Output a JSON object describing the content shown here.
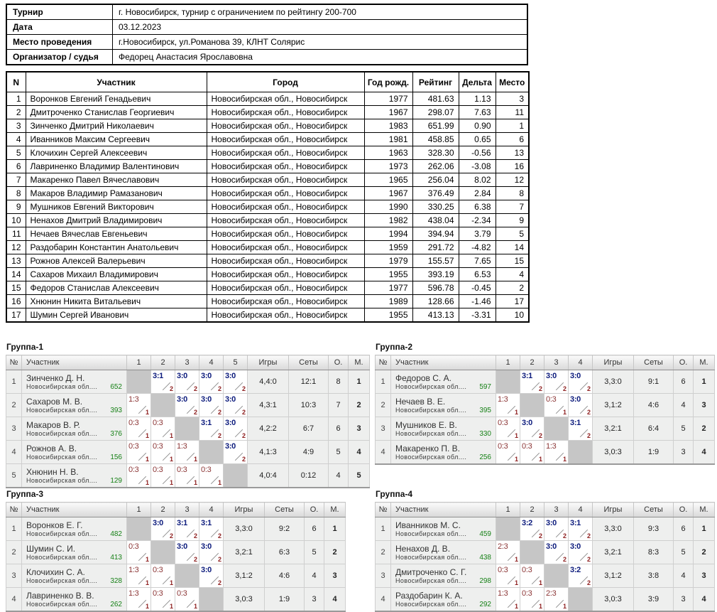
{
  "colors": {
    "win_score": "#0b1a7c",
    "loss_score": "#8b3434",
    "points_small": "#8e1f1f",
    "rating_green": "#178117",
    "place_navy": "#27308f",
    "self_cell": "#c6c6c6"
  },
  "info": {
    "rows": [
      {
        "label": "Турнир",
        "value": "г. Новосибирск, турнир с ограничением по рейтингу 200-700"
      },
      {
        "label": "Дата",
        "value": "03.12.2023"
      },
      {
        "label": "Место проведения",
        "value": "г.Новосибирск, ул.Романова 39, КЛНТ Солярис"
      },
      {
        "label": "Организатор / судья",
        "value": "Федорец Анастасия Ярославовна"
      }
    ]
  },
  "standings": {
    "headers": [
      "N",
      "Участник",
      "Город",
      "Год рожд.",
      "Рейтинг",
      "Дельта",
      "Место"
    ],
    "rows": [
      [
        "1",
        "Воронков Евгений Генадьевич",
        "Новосибирская обл., Новосибирск",
        "1977",
        "481.63",
        "1.13",
        "3"
      ],
      [
        "2",
        "Дмитроченко Станислав Георгиевич",
        "Новосибирская обл., Новосибирск",
        "1967",
        "298.07",
        "7.63",
        "11"
      ],
      [
        "3",
        "Зинченко Дмитрий Николаевич",
        "Новосибирская обл., Новосибирск",
        "1983",
        "651.99",
        "0.90",
        "1"
      ],
      [
        "4",
        "Иванников Максим Сергеевич",
        "Новосибирская обл., Новосибирск",
        "1981",
        "458.85",
        "0.65",
        "6"
      ],
      [
        "5",
        "Клочихин Сергей Алексеевич",
        "Новосибирская обл., Новосибирск",
        "1963",
        "328.30",
        "-0.56",
        "13"
      ],
      [
        "6",
        "Лавриненко Владимир Валентинович",
        "Новосибирская обл., Новосибирск",
        "1973",
        "262.06",
        "-3.08",
        "16"
      ],
      [
        "7",
        "Макаренко Павел Вячеславович",
        "Новосибирская обл., Новосибирск",
        "1965",
        "256.04",
        "8.02",
        "12"
      ],
      [
        "8",
        "Макаров Владимир Рамазанович",
        "Новосибирская обл., Новосибирск",
        "1967",
        "376.49",
        "2.84",
        "8"
      ],
      [
        "9",
        "Мушников Евгений Викторович",
        "Новосибирская обл., Новосибирск",
        "1990",
        "330.25",
        "6.38",
        "7"
      ],
      [
        "10",
        "Ненахов Дмитрий Владимирович",
        "Новосибирская обл., Новосибирск",
        "1982",
        "438.04",
        "-2.34",
        "9"
      ],
      [
        "11",
        "Нечаев Вячеслав Евгеньевич",
        "Новосибирская обл., Новосибирск",
        "1994",
        "394.94",
        "3.79",
        "5"
      ],
      [
        "12",
        "Раздобарин Константин Анатольевич",
        "Новосибирская обл., Новосибирск",
        "1959",
        "291.72",
        "-4.82",
        "14"
      ],
      [
        "13",
        "Рожнов Алексей Валерьевич",
        "Новосибирская обл., Новосибирск",
        "1979",
        "155.57",
        "7.65",
        "15"
      ],
      [
        "14",
        "Сахаров Михаил Владимирович",
        "Новосибирская обл., Новосибирск",
        "1955",
        "393.19",
        "6.53",
        "4"
      ],
      [
        "15",
        "Федоров Станислав Алексеевич",
        "Новосибирская обл., Новосибирск",
        "1977",
        "596.78",
        "-0.45",
        "2"
      ],
      [
        "16",
        "Хнюнин Никита Витальевич",
        "Новосибирская обл., Новосибирск",
        "1989",
        "128.66",
        "-1.46",
        "17"
      ],
      [
        "17",
        "Шумин Сергей Иванович",
        "Новосибирская обл., Новосибирск",
        "1955",
        "413.13",
        "-3.31",
        "10"
      ]
    ]
  },
  "group_headers": {
    "num": "№",
    "player": "Участник",
    "games": "Игры",
    "sets": "Сеты",
    "points": "О.",
    "place": "М."
  },
  "groups": [
    {
      "title": "Группа-1",
      "match_cols": [
        "1",
        "2",
        "3",
        "4",
        "5"
      ],
      "players": [
        {
          "num": "1",
          "name": "Зинченко Д. Н.",
          "region": "Новосибирская обл....",
          "rating": "652",
          "results": [
            null,
            {
              "s": "3:1",
              "p": "2",
              "w": 1
            },
            {
              "s": "3:0",
              "p": "2",
              "w": 1
            },
            {
              "s": "3:0",
              "p": "2",
              "w": 1
            },
            {
              "s": "3:0",
              "p": "2",
              "w": 1
            }
          ],
          "games": "4,4:0",
          "sets": "12:1",
          "points": "8",
          "place": "1"
        },
        {
          "num": "2",
          "name": "Сахаров М. В.",
          "region": "Новосибирская обл....",
          "rating": "393",
          "results": [
            {
              "s": "1:3",
              "p": "1",
              "w": 0
            },
            null,
            {
              "s": "3:0",
              "p": "2",
              "w": 1
            },
            {
              "s": "3:0",
              "p": "2",
              "w": 1
            },
            {
              "s": "3:0",
              "p": "2",
              "w": 1
            }
          ],
          "games": "4,3:1",
          "sets": "10:3",
          "points": "7",
          "place": "2"
        },
        {
          "num": "3",
          "name": "Макаров В. Р.",
          "region": "Новосибирская обл....",
          "rating": "376",
          "results": [
            {
              "s": "0:3",
              "p": "1",
              "w": 0
            },
            {
              "s": "0:3",
              "p": "1",
              "w": 0
            },
            null,
            {
              "s": "3:1",
              "p": "2",
              "w": 1
            },
            {
              "s": "3:0",
              "p": "2",
              "w": 1
            }
          ],
          "games": "4,2:2",
          "sets": "6:7",
          "points": "6",
          "place": "3"
        },
        {
          "num": "4",
          "name": "Рожнов А. В.",
          "region": "Новосибирская обл....",
          "rating": "156",
          "results": [
            {
              "s": "0:3",
              "p": "1",
              "w": 0
            },
            {
              "s": "0:3",
              "p": "1",
              "w": 0
            },
            {
              "s": "1:3",
              "p": "1",
              "w": 0
            },
            null,
            {
              "s": "3:0",
              "p": "2",
              "w": 1
            }
          ],
          "games": "4,1:3",
          "sets": "4:9",
          "points": "5",
          "place": "4"
        },
        {
          "num": "5",
          "name": "Хнюнин Н. В.",
          "region": "Новосибирская обл....",
          "rating": "129",
          "results": [
            {
              "s": "0:3",
              "p": "1",
              "w": 0
            },
            {
              "s": "0:3",
              "p": "1",
              "w": 0
            },
            {
              "s": "0:3",
              "p": "1",
              "w": 0
            },
            {
              "s": "0:3",
              "p": "1",
              "w": 0
            },
            null
          ],
          "games": "4,0:4",
          "sets": "0:12",
          "points": "4",
          "place": "5"
        }
      ]
    },
    {
      "title": "Группа-2",
      "match_cols": [
        "1",
        "2",
        "3",
        "4"
      ],
      "players": [
        {
          "num": "1",
          "name": "Федоров С. А.",
          "region": "Новосибирская обл....",
          "rating": "597",
          "results": [
            null,
            {
              "s": "3:1",
              "p": "2",
              "w": 1
            },
            {
              "s": "3:0",
              "p": "2",
              "w": 1
            },
            {
              "s": "3:0",
              "p": "2",
              "w": 1
            }
          ],
          "games": "3,3:0",
          "sets": "9:1",
          "points": "6",
          "place": "1"
        },
        {
          "num": "2",
          "name": "Нечаев В. Е.",
          "region": "Новосибирская обл....",
          "rating": "395",
          "results": [
            {
              "s": "1:3",
              "p": "1",
              "w": 0
            },
            null,
            {
              "s": "0:3",
              "p": "1",
              "w": 0
            },
            {
              "s": "3:0",
              "p": "2",
              "w": 1
            }
          ],
          "games": "3,1:2",
          "sets": "4:6",
          "points": "4",
          "place": "3"
        },
        {
          "num": "3",
          "name": "Мушников Е. В.",
          "region": "Новосибирская обл....",
          "rating": "330",
          "results": [
            {
              "s": "0:3",
              "p": "1",
              "w": 0
            },
            {
              "s": "3:0",
              "p": "2",
              "w": 1
            },
            null,
            {
              "s": "3:1",
              "p": "2",
              "w": 1
            }
          ],
          "games": "3,2:1",
          "sets": "6:4",
          "points": "5",
          "place": "2"
        },
        {
          "num": "4",
          "name": "Макаренко П. В.",
          "region": "Новосибирская обл....",
          "rating": "256",
          "results": [
            {
              "s": "0:3",
              "p": "1",
              "w": 0
            },
            {
              "s": "0:3",
              "p": "1",
              "w": 0
            },
            {
              "s": "1:3",
              "p": "1",
              "w": 0
            },
            null
          ],
          "games": "3,0:3",
          "sets": "1:9",
          "points": "3",
          "place": "4"
        }
      ]
    },
    {
      "title": "Группа-3",
      "match_cols": [
        "1",
        "2",
        "3",
        "4"
      ],
      "players": [
        {
          "num": "1",
          "name": "Воронков Е. Г.",
          "region": "Новосибирская обл....",
          "rating": "482",
          "results": [
            null,
            {
              "s": "3:0",
              "p": "2",
              "w": 1
            },
            {
              "s": "3:1",
              "p": "2",
              "w": 1
            },
            {
              "s": "3:1",
              "p": "2",
              "w": 1
            }
          ],
          "games": "3,3:0",
          "sets": "9:2",
          "points": "6",
          "place": "1"
        },
        {
          "num": "2",
          "name": "Шумин С. И.",
          "region": "Новосибирская обл....",
          "rating": "413",
          "results": [
            {
              "s": "0:3",
              "p": "1",
              "w": 0
            },
            null,
            {
              "s": "3:0",
              "p": "2",
              "w": 1
            },
            {
              "s": "3:0",
              "p": "2",
              "w": 1
            }
          ],
          "games": "3,2:1",
          "sets": "6:3",
          "points": "5",
          "place": "2"
        },
        {
          "num": "3",
          "name": "Клочихин С. А.",
          "region": "Новосибирская обл....",
          "rating": "328",
          "results": [
            {
              "s": "1:3",
              "p": "1",
              "w": 0
            },
            {
              "s": "0:3",
              "p": "1",
              "w": 0
            },
            null,
            {
              "s": "3:0",
              "p": "2",
              "w": 1
            }
          ],
          "games": "3,1:2",
          "sets": "4:6",
          "points": "4",
          "place": "3"
        },
        {
          "num": "4",
          "name": "Лавриненко В. В.",
          "region": "Новосибирская обл....",
          "rating": "262",
          "results": [
            {
              "s": "1:3",
              "p": "1",
              "w": 0
            },
            {
              "s": "0:3",
              "p": "1",
              "w": 0
            },
            {
              "s": "0:3",
              "p": "1",
              "w": 0
            },
            null
          ],
          "games": "3,0:3",
          "sets": "1:9",
          "points": "3",
          "place": "4"
        }
      ]
    },
    {
      "title": "Группа-4",
      "match_cols": [
        "1",
        "2",
        "3",
        "4"
      ],
      "players": [
        {
          "num": "1",
          "name": "Иванников М. С.",
          "region": "Новосибирская обл....",
          "rating": "459",
          "results": [
            null,
            {
              "s": "3:2",
              "p": "2",
              "w": 1
            },
            {
              "s": "3:0",
              "p": "2",
              "w": 1
            },
            {
              "s": "3:1",
              "p": "2",
              "w": 1
            }
          ],
          "games": "3,3:0",
          "sets": "9:3",
          "points": "6",
          "place": "1"
        },
        {
          "num": "2",
          "name": "Ненахов Д. В.",
          "region": "Новосибирская обл....",
          "rating": "438",
          "results": [
            {
              "s": "2:3",
              "p": "1",
              "w": 0
            },
            null,
            {
              "s": "3:0",
              "p": "2",
              "w": 1
            },
            {
              "s": "3:0",
              "p": "2",
              "w": 1
            }
          ],
          "games": "3,2:1",
          "sets": "8:3",
          "points": "5",
          "place": "2"
        },
        {
          "num": "3",
          "name": "Дмитроченко С. Г.",
          "region": "Новосибирская обл....",
          "rating": "298",
          "results": [
            {
              "s": "0:3",
              "p": "1",
              "w": 0
            },
            {
              "s": "0:3",
              "p": "1",
              "w": 0
            },
            null,
            {
              "s": "3:2",
              "p": "2",
              "w": 1
            }
          ],
          "games": "3,1:2",
          "sets": "3:8",
          "points": "4",
          "place": "3"
        },
        {
          "num": "4",
          "name": "Раздобарин К. А.",
          "region": "Новосибирская обл....",
          "rating": "292",
          "results": [
            {
              "s": "1:3",
              "p": "1",
              "w": 0
            },
            {
              "s": "0:3",
              "p": "1",
              "w": 0
            },
            {
              "s": "2:3",
              "p": "1",
              "w": 0
            },
            null
          ],
          "games": "3,0:3",
          "sets": "3:9",
          "points": "3",
          "place": "4"
        }
      ]
    }
  ]
}
